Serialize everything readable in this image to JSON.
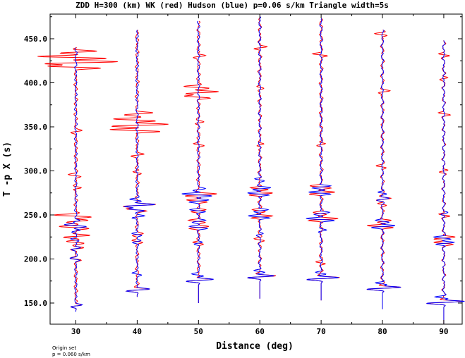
{
  "chart_data": {
    "type": "line",
    "title": "ZDD H=300 (km) WK (red) Hudson (blue) p=0.06 s/km Triangle width=5s",
    "xlabel": "Distance (deg)",
    "ylabel": "T -p X (s)",
    "xlim": [
      25.8,
      93.0
    ],
    "ylim": [
      126.0,
      478.0
    ],
    "x_ticks": [
      "30",
      "40",
      "50",
      "60",
      "70",
      "80",
      "90"
    ],
    "x_tick_values": [
      30,
      40,
      50,
      60,
      70,
      80,
      90
    ],
    "y_ticks": [
      "150.0",
      "200.0",
      "250.0",
      "300.0",
      "350.0",
      "400.0",
      "450.0"
    ],
    "y_tick_values": [
      150,
      200,
      250,
      300,
      350,
      400,
      450
    ],
    "grid": false,
    "series": [
      {
        "name": "WK",
        "color": "#ff0000"
      },
      {
        "name": "Hudson",
        "color": "#0000ff"
      }
    ],
    "traces": [
      {
        "distance": 30,
        "start": 140,
        "end": 440,
        "first_arrival": 148,
        "blue_events": [
          [
            147,
            1.2
          ],
          [
            200,
            1.0
          ],
          [
            212,
            0.9
          ],
          [
            222,
            0.9
          ],
          [
            232,
            1.1
          ],
          [
            238,
            2.6
          ],
          [
            243,
            0.9
          ]
        ],
        "red_events": [
          [
            147,
            1.2
          ],
          [
            200,
            1.0
          ],
          [
            212,
            1.6
          ],
          [
            219,
            2.0
          ],
          [
            226,
            3.0
          ],
          [
            236,
            3.2
          ],
          [
            243,
            2.2
          ],
          [
            249,
            4.0
          ],
          [
            280,
            1.0
          ],
          [
            295,
            1.2
          ],
          [
            345,
            1.0
          ],
          [
            418,
            6.0
          ],
          [
            423,
            8.5
          ],
          [
            429,
            7.5
          ],
          [
            435,
            4.0
          ]
        ]
      },
      {
        "distance": 40,
        "start": 157,
        "end": 460,
        "first_arrival": 165,
        "blue_events": [
          [
            165,
            2.6
          ],
          [
            183,
            0.9
          ],
          [
            220,
            0.9
          ],
          [
            228,
            1.0
          ],
          [
            248,
            1.2
          ],
          [
            256,
            2.0
          ],
          [
            261,
            3.5
          ],
          [
            267,
            1.4
          ]
        ],
        "red_events": [
          [
            165,
            2.6
          ],
          [
            220,
            1.0
          ],
          [
            228,
            1.2
          ],
          [
            256,
            2.2
          ],
          [
            261,
            3.7
          ],
          [
            298,
            1.0
          ],
          [
            318,
            1.2
          ],
          [
            346,
            5.5
          ],
          [
            352,
            6.0
          ],
          [
            358,
            4.5
          ],
          [
            365,
            3.0
          ]
        ]
      },
      {
        "distance": 50,
        "start": 150,
        "end": 470,
        "first_arrival": 176,
        "blue_events": [
          [
            176,
            3.0
          ],
          [
            182,
            1.2
          ],
          [
            218,
            0.9
          ],
          [
            236,
            1.8
          ],
          [
            243,
            1.5
          ],
          [
            255,
            1.8
          ],
          [
            266,
            2.0
          ],
          [
            273,
            3.2
          ],
          [
            279,
            1.3
          ]
        ],
        "red_events": [
          [
            176,
            3.0
          ],
          [
            218,
            1.1
          ],
          [
            236,
            2.0
          ],
          [
            243,
            1.7
          ],
          [
            255,
            1.8
          ],
          [
            266,
            2.2
          ],
          [
            273,
            3.3
          ],
          [
            330,
            1.0
          ],
          [
            355,
            1.1
          ],
          [
            384,
            3.0
          ],
          [
            389,
            4.0
          ],
          [
            395,
            3.0
          ],
          [
            430,
            1.3
          ]
        ]
      },
      {
        "distance": 60,
        "start": 155,
        "end": 475,
        "first_arrival": 180,
        "blue_events": [
          [
            180,
            3.0
          ],
          [
            186,
            1.3
          ],
          [
            228,
            0.9
          ],
          [
            248,
            2.2
          ],
          [
            255,
            1.5
          ],
          [
            274,
            2.4
          ],
          [
            280,
            2.0
          ],
          [
            290,
            1.0
          ]
        ],
        "red_events": [
          [
            180,
            3.0
          ],
          [
            222,
            1.2
          ],
          [
            248,
            2.3
          ],
          [
            255,
            1.5
          ],
          [
            274,
            2.6
          ],
          [
            280,
            2.2
          ],
          [
            330,
            1.0
          ],
          [
            395,
            1.0
          ],
          [
            440,
            1.2
          ]
        ]
      },
      {
        "distance": 70,
        "start": 153,
        "end": 473,
        "first_arrival": 178,
        "blue_events": [
          [
            178,
            3.5
          ],
          [
            184,
            1.3
          ],
          [
            232,
            0.9
          ],
          [
            245,
            3.0
          ],
          [
            252,
            1.5
          ],
          [
            275,
            2.4
          ],
          [
            282,
            2.1
          ]
        ],
        "red_events": [
          [
            178,
            3.5
          ],
          [
            196,
            1.0
          ],
          [
            245,
            3.1
          ],
          [
            252,
            1.6
          ],
          [
            275,
            2.6
          ],
          [
            282,
            2.2
          ],
          [
            330,
            1.0
          ],
          [
            432,
            1.3
          ]
        ]
      },
      {
        "distance": 80,
        "start": 143,
        "end": 460,
        "first_arrival": 167,
        "blue_events": [
          [
            167,
            3.8
          ],
          [
            172,
            1.4
          ],
          [
            237,
            2.5
          ],
          [
            243,
            1.5
          ],
          [
            268,
            1.4
          ],
          [
            275,
            1.0
          ]
        ],
        "red_events": [
          [
            167,
            3.8
          ],
          [
            237,
            2.7
          ],
          [
            243,
            1.6
          ],
          [
            262,
            1.1
          ],
          [
            268,
            1.6
          ],
          [
            305,
            1.0
          ],
          [
            390,
            1.1
          ],
          [
            455,
            1.4
          ]
        ]
      },
      {
        "distance": 90,
        "start": 126,
        "end": 448,
        "first_arrival": 151,
        "blue_events": [
          [
            151,
            4.2
          ],
          [
            156,
            1.6
          ],
          [
            218,
            2.0
          ],
          [
            224,
            1.8
          ],
          [
            252,
            0.8
          ]
        ],
        "red_events": [
          [
            151,
            4.2
          ],
          [
            218,
            2.0
          ],
          [
            224,
            2.4
          ],
          [
            250,
            1.1
          ],
          [
            300,
            1.0
          ],
          [
            365,
            1.2
          ],
          [
            405,
            1.0
          ],
          [
            432,
            1.3
          ]
        ]
      }
    ]
  },
  "footer": {
    "line1": "Origin set",
    "line2": "p = 0.060 s/km"
  }
}
